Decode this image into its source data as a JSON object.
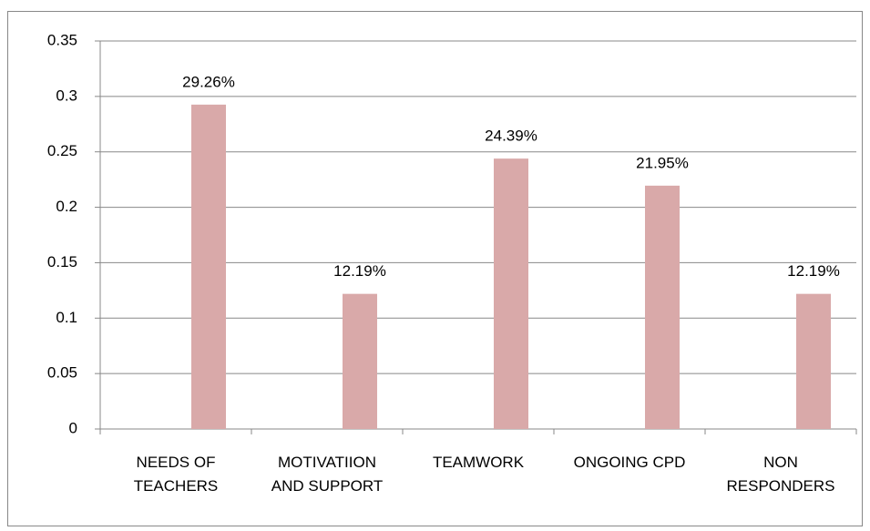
{
  "chart_data": {
    "type": "bar",
    "categories": [
      "NEEDS OF TEACHERS",
      "MOTIVATIION AND SUPPORT",
      "TEAMWORK",
      "ONGOING CPD",
      "NON RESPONDERS"
    ],
    "values": [
      0.2926,
      0.1219,
      0.2439,
      0.2195,
      0.1219
    ],
    "value_labels": [
      "29.26%",
      "12.19%",
      "24.39%",
      "21.95%",
      "12.19%"
    ],
    "color": "#d9a9a9",
    "ylim": [
      0,
      0.35
    ],
    "yticks": [
      0,
      0.05,
      0.1,
      0.15,
      0.2,
      0.25,
      0.3,
      0.35
    ],
    "grid": true
  }
}
